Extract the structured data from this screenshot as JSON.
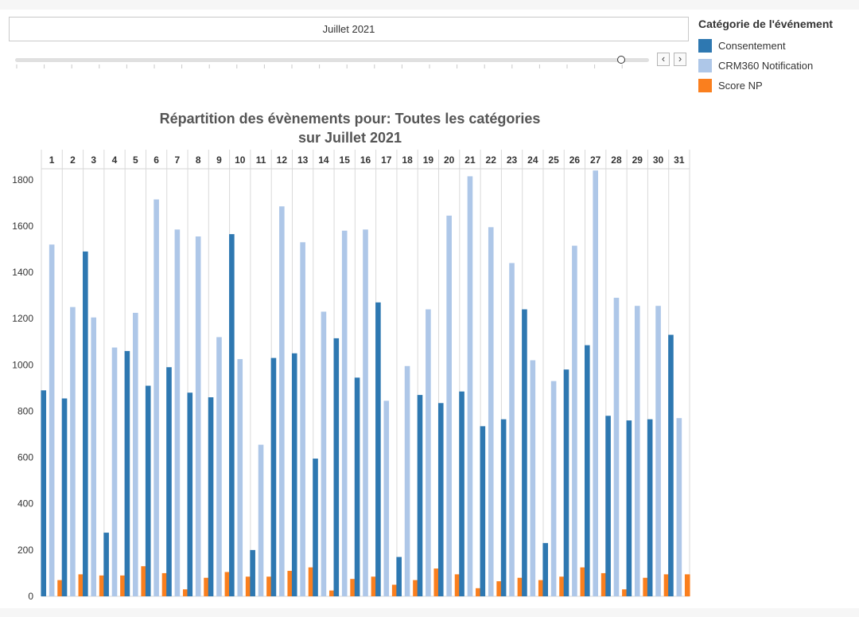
{
  "filter": {
    "period_label": "Juillet 2021",
    "prev_label": "‹",
    "next_label": "›"
  },
  "legend": {
    "title": "Catégorie de l'événement",
    "items": [
      {
        "label": "Consentement",
        "color": "#2e78b1"
      },
      {
        "label": "CRM360 Notification",
        "color": "#aec7e8"
      },
      {
        "label": "Score NP",
        "color": "#fa7f1e"
      }
    ]
  },
  "chart_data": {
    "type": "bar",
    "title": "Répartition des évènements pour: Toutes les catégories",
    "subtitle": "sur Juillet 2021",
    "categories": [
      "1",
      "2",
      "3",
      "4",
      "5",
      "6",
      "7",
      "8",
      "9",
      "10",
      "11",
      "12",
      "13",
      "14",
      "15",
      "16",
      "17",
      "18",
      "19",
      "20",
      "21",
      "22",
      "23",
      "24",
      "25",
      "26",
      "27",
      "28",
      "29",
      "30",
      "31"
    ],
    "series": [
      {
        "name": "Consentement",
        "color": "#2e78b1",
        "values": [
          890,
          855,
          1490,
          275,
          1060,
          910,
          990,
          880,
          860,
          1565,
          200,
          1030,
          1050,
          595,
          1115,
          945,
          1270,
          170,
          870,
          835,
          885,
          735,
          765,
          1240,
          230,
          980,
          1085,
          780,
          760,
          765,
          1130
        ]
      },
      {
        "name": "CRM360 Notification",
        "color": "#aec7e8",
        "values": [
          1520,
          1250,
          1205,
          1075,
          1225,
          1715,
          1585,
          1555,
          1120,
          1025,
          655,
          1685,
          1530,
          1230,
          1580,
          1585,
          845,
          995,
          1240,
          1645,
          1815,
          1595,
          1440,
          1020,
          930,
          1515,
          1840,
          1290,
          1255,
          1255,
          770
        ]
      },
      {
        "name": "Score NP",
        "color": "#fa7f1e",
        "values": [
          70,
          95,
          90,
          90,
          130,
          100,
          30,
          80,
          105,
          85,
          85,
          110,
          125,
          25,
          75,
          85,
          50,
          70,
          120,
          95,
          35,
          65,
          80,
          70,
          85,
          125,
          100,
          30,
          80,
          95,
          95
        ]
      }
    ],
    "yticks": [
      0,
      200,
      400,
      600,
      800,
      1000,
      1200,
      1400,
      1600,
      1800
    ],
    "ylim": [
      0,
      1930
    ],
    "grid": false
  }
}
